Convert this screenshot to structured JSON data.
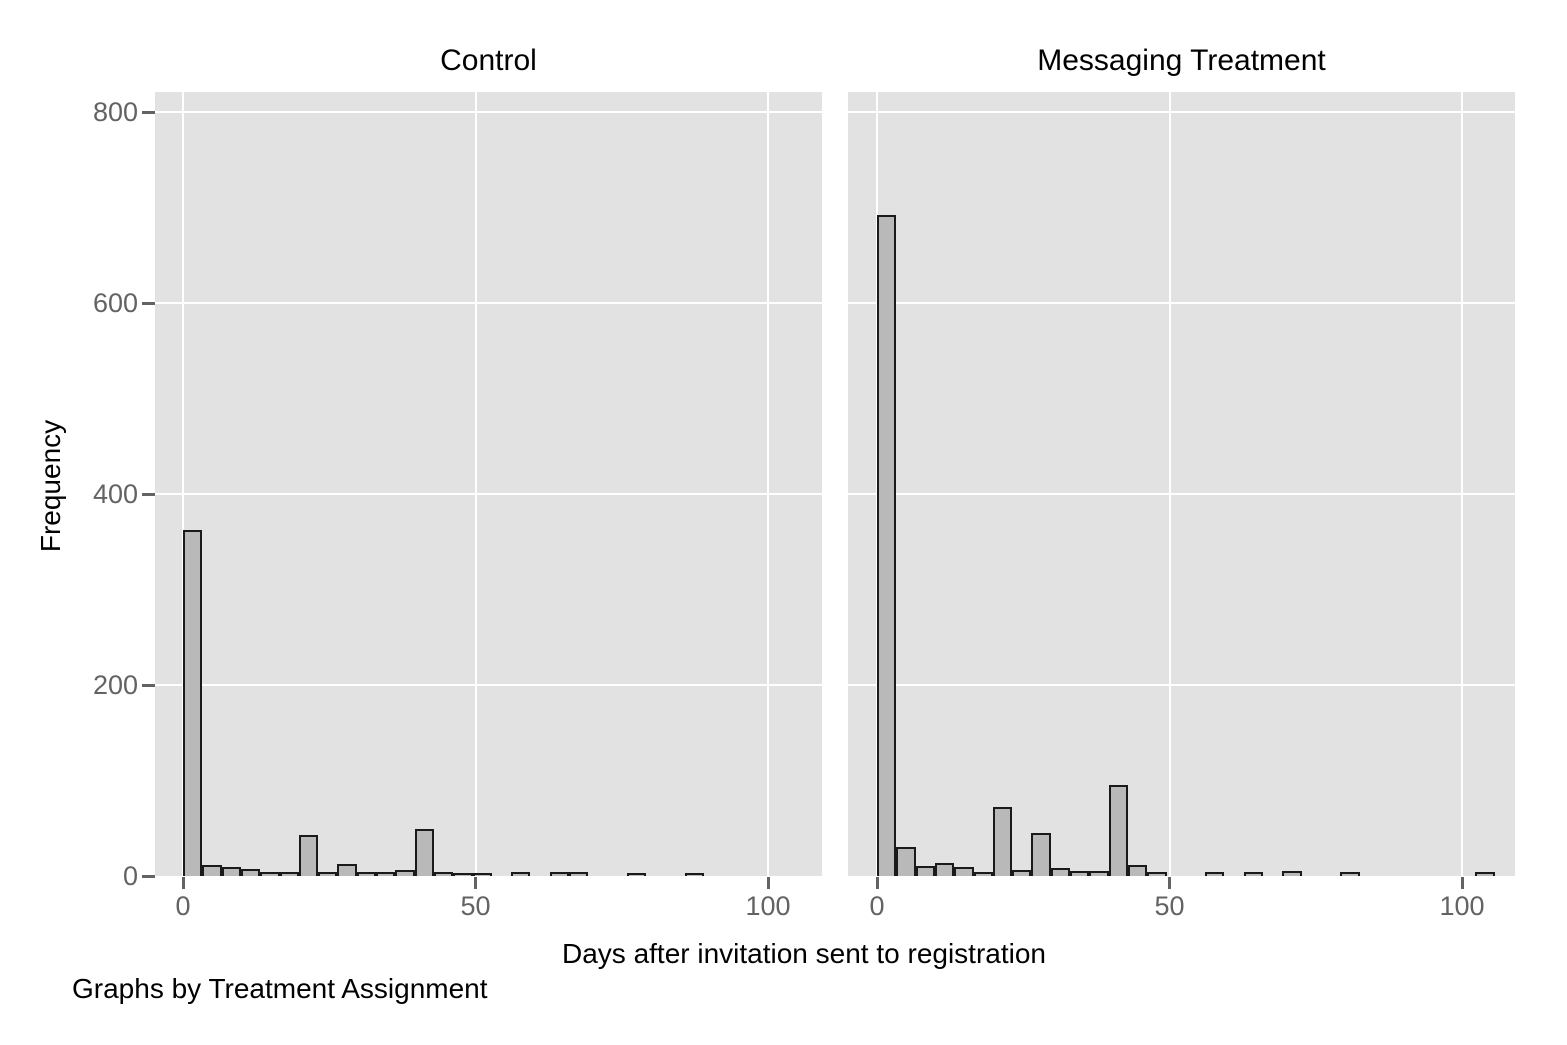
{
  "figure": {
    "background": "#ffffff",
    "panel_background": "#e2e2e2",
    "gridline_color": "#ffffff",
    "bar_fill": "#b9b9b9",
    "bar_stroke": "#1a1a1a",
    "tick_color": "#636363",
    "text_color": "#000000"
  },
  "chart_data": {
    "type": "bar",
    "subtype": "faceted histogram",
    "title": "",
    "xlabel": "Days after invitation sent to registration",
    "ylabel": "Frequency",
    "note": "Graphs by Treatment Assignment",
    "x_ticks": [
      0,
      50,
      100
    ],
    "y_ticks": [
      0,
      200,
      400,
      600,
      800
    ],
    "xlim": [
      -5,
      110
    ],
    "ylim": [
      0,
      820
    ],
    "bin_width_days": 3.3,
    "legend": "none",
    "grid": "on",
    "panels": [
      {
        "title": "Control",
        "bars": [
          [
            0,
            360
          ],
          [
            3.3,
            9
          ],
          [
            6.6,
            7
          ],
          [
            9.9,
            5
          ],
          [
            13.2,
            2
          ],
          [
            16.5,
            2
          ],
          [
            19.8,
            41
          ],
          [
            23.1,
            2
          ],
          [
            26.4,
            10
          ],
          [
            29.7,
            2
          ],
          [
            33,
            2
          ],
          [
            36.3,
            4
          ],
          [
            39.6,
            47
          ],
          [
            42.9,
            2
          ],
          [
            46.2,
            1
          ],
          [
            49.5,
            1
          ],
          [
            56.1,
            2
          ],
          [
            62.7,
            2
          ],
          [
            66,
            2
          ],
          [
            75.9,
            1
          ],
          [
            85.8,
            1
          ]
        ]
      },
      {
        "title": "Messaging Treatment",
        "bars": [
          [
            0,
            690
          ],
          [
            3.3,
            28
          ],
          [
            6.6,
            8
          ],
          [
            9.9,
            12
          ],
          [
            13.2,
            7
          ],
          [
            16.5,
            2
          ],
          [
            19.8,
            70
          ],
          [
            23.1,
            4
          ],
          [
            26.4,
            43
          ],
          [
            29.7,
            6
          ],
          [
            33,
            3
          ],
          [
            36.3,
            3
          ],
          [
            39.6,
            93
          ],
          [
            42.9,
            9
          ],
          [
            46.2,
            2
          ],
          [
            56.1,
            2
          ],
          [
            62.7,
            2
          ],
          [
            69.3,
            3
          ],
          [
            79.2,
            2
          ],
          [
            102.3,
            2
          ]
        ]
      }
    ]
  }
}
